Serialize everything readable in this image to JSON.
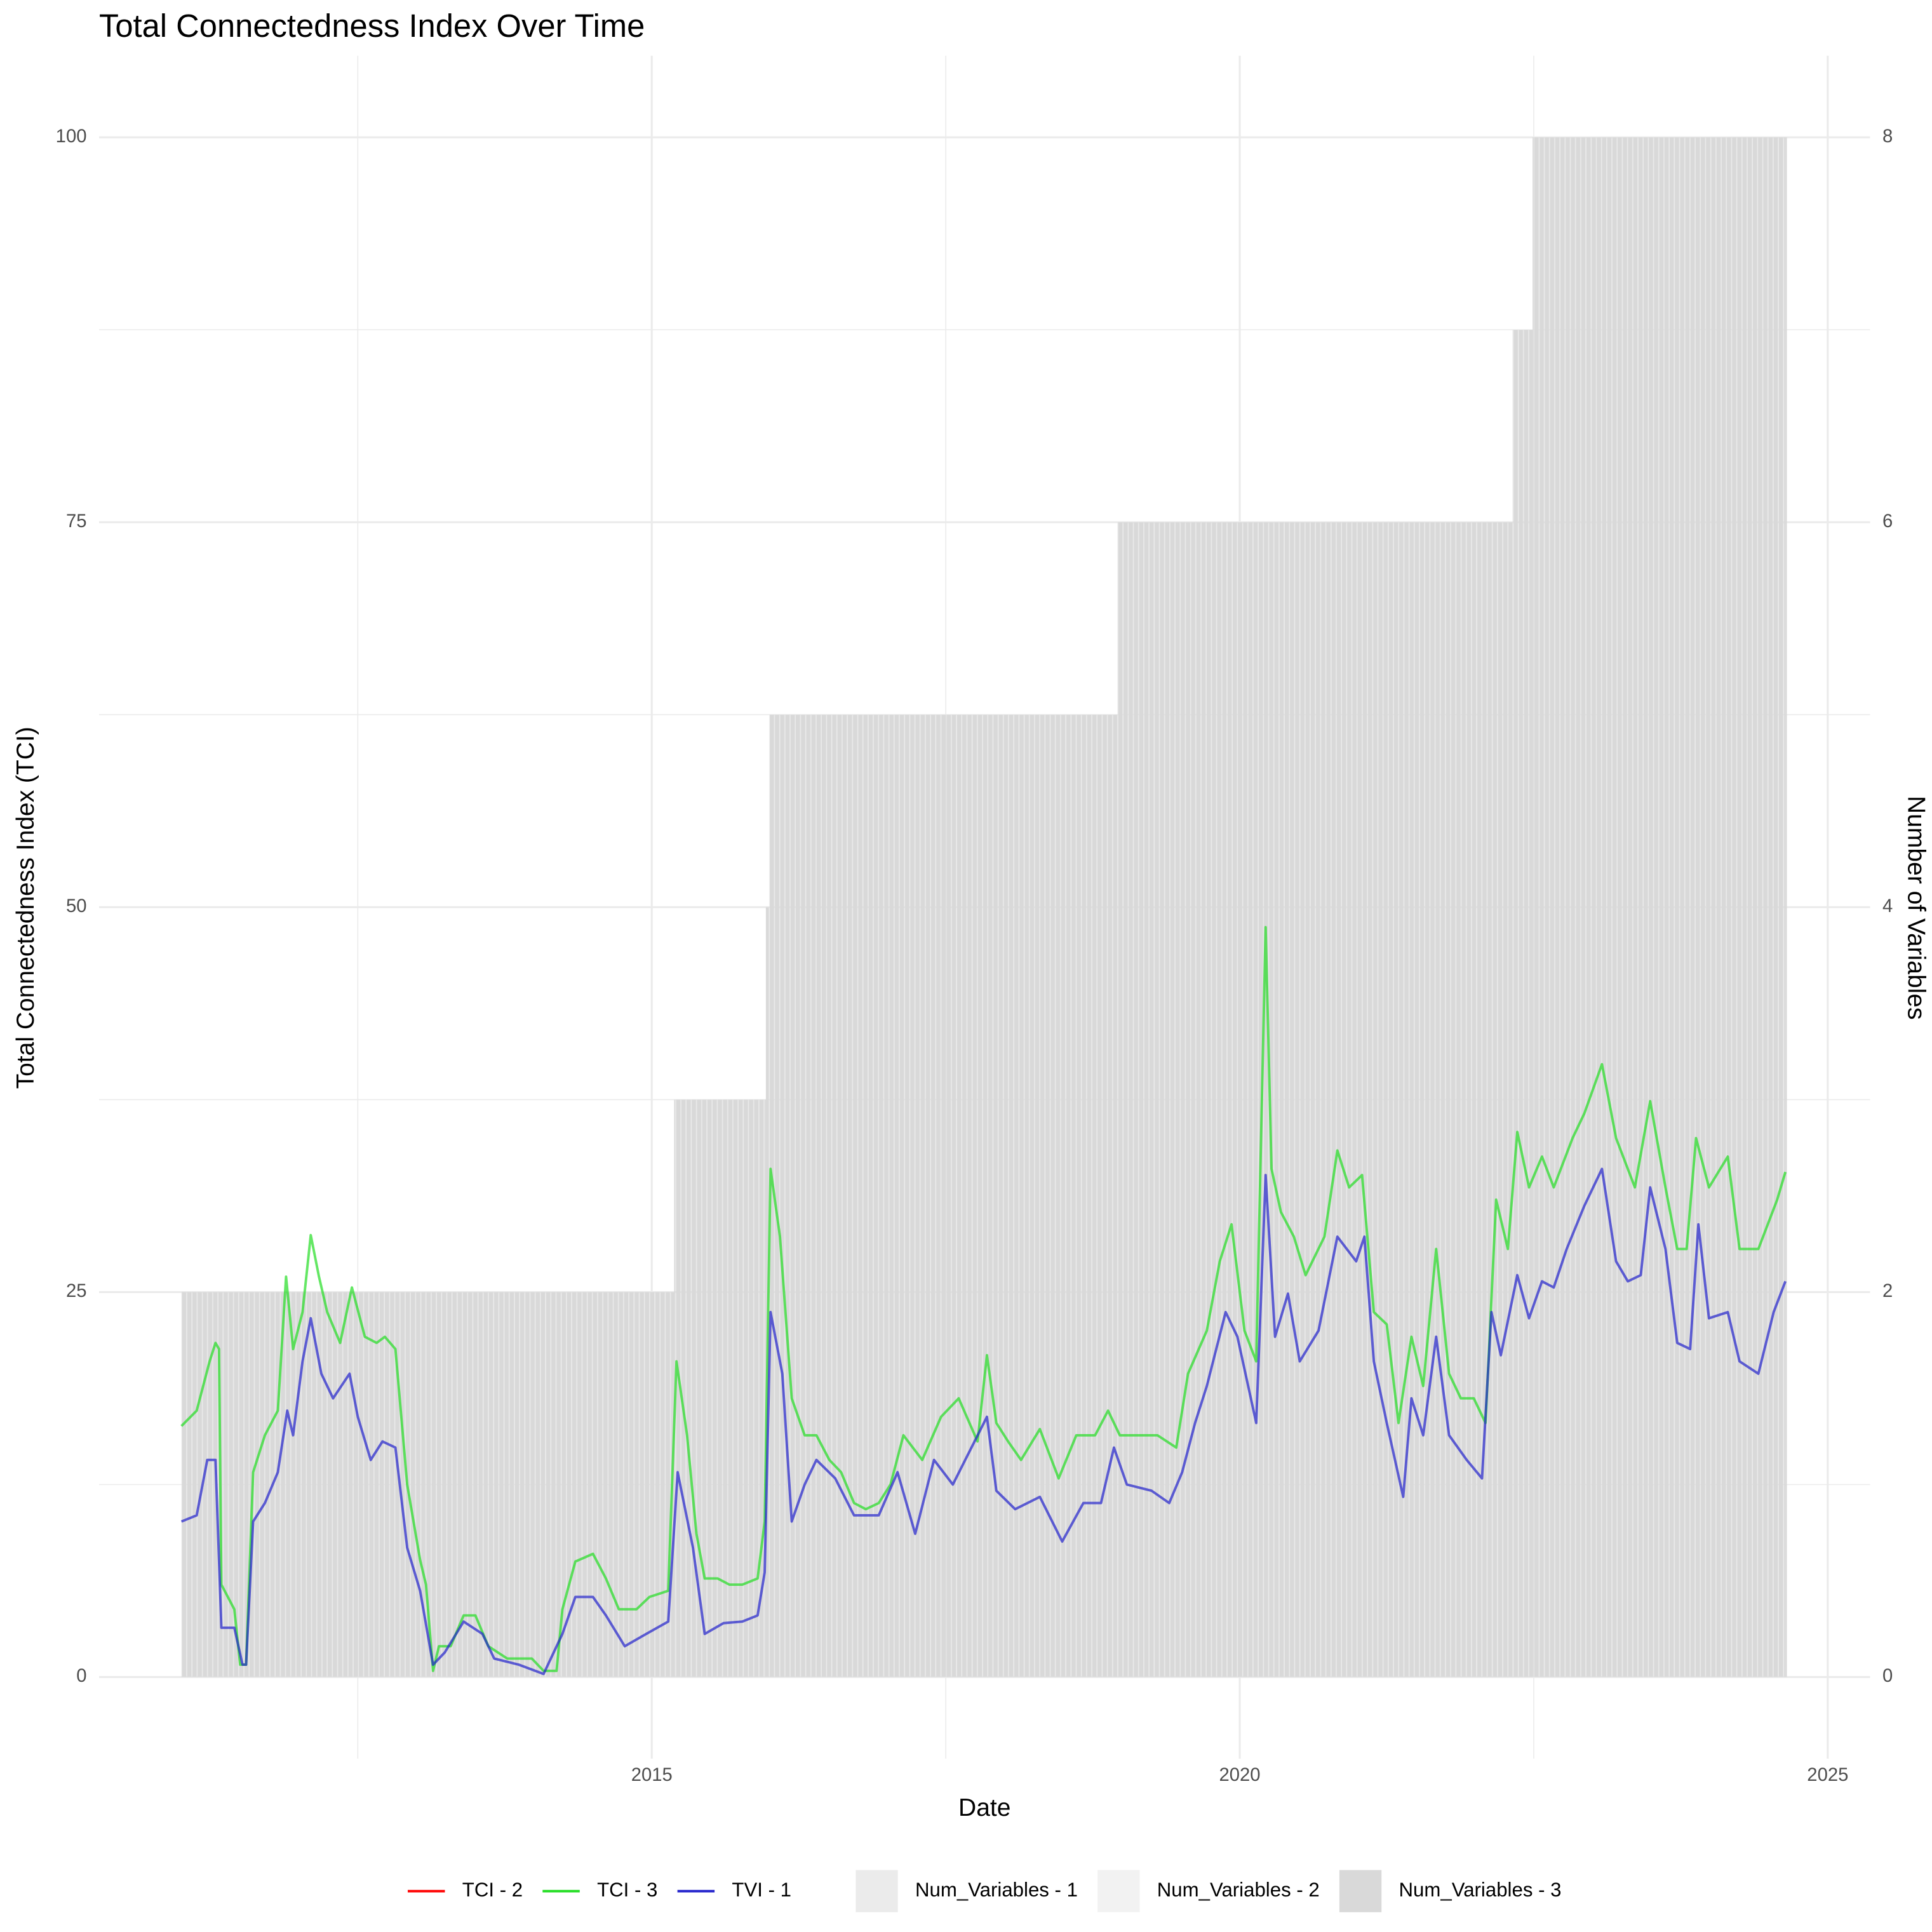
{
  "chart_data": {
    "type": "line",
    "title": "Total Connectedness Index Over Time",
    "x_label": "Date",
    "y_label": "Total Connectedness Index (TCI)",
    "y2_label": "Number of Variables",
    "xlim": [
      2010.3,
      2025.36
    ],
    "xticks": [
      2015,
      2020,
      2025
    ],
    "ylim": [
      -5.3,
      105.3
    ],
    "yticks": [
      0,
      25,
      50,
      75,
      100
    ],
    "y2lim": [
      -0.424,
      8.424
    ],
    "y2ticks": [
      0,
      2,
      4,
      6,
      8
    ],
    "grid": true,
    "minor_grid": true,
    "legend": "bottom",
    "series": [
      {
        "name": "TCI - 2",
        "type": "line",
        "color": "#ff0000",
        "x": [],
        "values": []
      },
      {
        "name": "TCI - 3",
        "type": "line",
        "color": "#22dd22",
        "x": [
          2011.0,
          2011.13,
          2011.24,
          2011.29,
          2011.32,
          2011.34,
          2011.45,
          2011.5,
          2011.55,
          2011.61,
          2011.71,
          2011.82,
          2011.89,
          2011.95,
          2012.03,
          2012.1,
          2012.17,
          2012.24,
          2012.35,
          2012.45,
          2012.56,
          2012.66,
          2012.73,
          2012.82,
          2012.92,
          2013.03,
          2013.08,
          2013.14,
          2013.19,
          2013.29,
          2013.4,
          2013.5,
          2013.61,
          2013.77,
          2013.98,
          2014.08,
          2014.19,
          2014.24,
          2014.35,
          2014.5,
          2014.61,
          2014.72,
          2014.87,
          2014.98,
          2015.14,
          2015.21,
          2015.3,
          2015.38,
          2015.45,
          2015.56,
          2015.66,
          2015.77,
          2015.9,
          2015.96,
          2016.01,
          2016.09,
          2016.19,
          2016.3,
          2016.4,
          2016.51,
          2016.61,
          2016.72,
          2016.82,
          2016.93,
          2017.03,
          2017.14,
          2017.3,
          2017.46,
          2017.61,
          2017.77,
          2017.85,
          2017.93,
          2018.03,
          2018.14,
          2018.3,
          2018.46,
          2018.61,
          2018.77,
          2018.88,
          2018.98,
          2019.14,
          2019.3,
          2019.46,
          2019.56,
          2019.72,
          2019.83,
          2019.93,
          2020.04,
          2020.14,
          2020.22,
          2020.27,
          2020.35,
          2020.46,
          2020.56,
          2020.72,
          2020.83,
          2020.93,
          2021.04,
          2021.14,
          2021.25,
          2021.35,
          2021.46,
          2021.56,
          2021.67,
          2021.78,
          2021.88,
          2021.99,
          2022.09,
          2022.18,
          2022.28,
          2022.36,
          2022.46,
          2022.57,
          2022.67,
          2022.83,
          2022.93,
          2023.08,
          2023.2,
          2023.36,
          2023.49,
          2023.62,
          2023.72,
          2023.8,
          2023.88,
          2023.99,
          2024.15,
          2024.25,
          2024.41,
          2024.57,
          2024.64
        ],
        "values": [
          16.3,
          17.3,
          20.5,
          21.7,
          21.3,
          6.0,
          4.4,
          0.8,
          0.8,
          13.3,
          15.7,
          17.3,
          26.0,
          21.3,
          23.7,
          28.7,
          26.0,
          23.7,
          21.7,
          25.3,
          22.1,
          21.7,
          22.1,
          21.3,
          12.5,
          7.6,
          6.0,
          0.4,
          2.0,
          2.0,
          4.0,
          4.0,
          2.0,
          1.2,
          1.2,
          0.4,
          0.4,
          4.4,
          7.5,
          8.0,
          6.4,
          4.4,
          4.4,
          5.2,
          5.6,
          20.5,
          15.7,
          9.3,
          6.4,
          6.4,
          6.0,
          6.0,
          6.4,
          10.1,
          33.0,
          28.6,
          18.1,
          15.7,
          15.7,
          14.1,
          13.3,
          11.3,
          10.9,
          11.3,
          12.5,
          15.7,
          14.1,
          16.9,
          18.1,
          15.3,
          20.9,
          16.5,
          15.3,
          14.1,
          16.1,
          12.9,
          15.7,
          15.7,
          17.3,
          15.7,
          15.7,
          15.7,
          14.9,
          19.7,
          22.5,
          27.0,
          29.4,
          22.5,
          20.5,
          48.7,
          33.0,
          30.2,
          28.6,
          26.1,
          28.6,
          34.2,
          31.8,
          32.6,
          23.7,
          22.9,
          16.5,
          22.1,
          18.9,
          27.8,
          19.7,
          18.1,
          18.1,
          16.5,
          31.0,
          27.8,
          35.4,
          31.8,
          33.8,
          31.8,
          35.0,
          36.6,
          39.8,
          35.0,
          31.8,
          37.4,
          31.8,
          27.8,
          27.8,
          35.0,
          31.8,
          33.8,
          27.8,
          27.8,
          31.0,
          32.8
        ]
      },
      {
        "name": "TVI - 1",
        "type": "line",
        "color": "#2222cc",
        "x": [
          2011.0,
          2011.13,
          2011.22,
          2011.29,
          2011.34,
          2011.45,
          2011.52,
          2011.55,
          2011.61,
          2011.71,
          2011.82,
          2011.9,
          2011.95,
          2012.03,
          2012.1,
          2012.19,
          2012.29,
          2012.43,
          2012.5,
          2012.61,
          2012.71,
          2012.82,
          2012.92,
          2013.03,
          2013.14,
          2013.24,
          2013.4,
          2013.56,
          2013.66,
          2013.87,
          2014.08,
          2014.24,
          2014.35,
          2014.5,
          2014.61,
          2014.77,
          2014.93,
          2015.14,
          2015.22,
          2015.35,
          2015.45,
          2015.61,
          2015.77,
          2015.9,
          2015.96,
          2016.01,
          2016.11,
          2016.19,
          2016.3,
          2016.4,
          2016.56,
          2016.72,
          2016.93,
          2017.09,
          2017.24,
          2017.4,
          2017.56,
          2017.85,
          2017.93,
          2018.09,
          2018.3,
          2018.49,
          2018.67,
          2018.82,
          2018.93,
          2019.04,
          2019.25,
          2019.4,
          2019.51,
          2019.62,
          2019.72,
          2019.88,
          2019.98,
          2020.14,
          2020.22,
          2020.3,
          2020.41,
          2020.51,
          2020.67,
          2020.83,
          2020.99,
          2021.06,
          2021.14,
          2021.25,
          2021.39,
          2021.46,
          2021.56,
          2021.67,
          2021.78,
          2021.93,
          2022.06,
          2022.14,
          2022.22,
          2022.36,
          2022.46,
          2022.57,
          2022.67,
          2022.78,
          2022.93,
          2023.08,
          2023.2,
          2023.3,
          2023.41,
          2023.49,
          2023.62,
          2023.72,
          2023.83,
          2023.9,
          2023.99,
          2024.15,
          2024.25,
          2024.41,
          2024.54,
          2024.64
        ],
        "values": [
          10.1,
          10.5,
          14.1,
          14.1,
          3.2,
          3.2,
          0.8,
          0.8,
          10.1,
          11.3,
          13.3,
          17.3,
          15.7,
          20.5,
          23.3,
          19.7,
          18.1,
          19.7,
          16.9,
          14.1,
          15.3,
          14.9,
          8.4,
          5.6,
          0.8,
          1.6,
          3.6,
          2.8,
          1.2,
          0.8,
          0.2,
          2.8,
          5.2,
          5.2,
          4.0,
          2.0,
          2.7,
          3.6,
          13.3,
          8.4,
          2.8,
          3.5,
          3.6,
          4.0,
          6.8,
          23.7,
          19.7,
          10.1,
          12.5,
          14.1,
          12.9,
          10.5,
          10.5,
          13.3,
          9.3,
          14.1,
          12.5,
          16.9,
          12.1,
          10.9,
          11.7,
          8.8,
          11.3,
          11.3,
          14.9,
          12.5,
          12.1,
          11.3,
          13.3,
          16.5,
          18.9,
          23.7,
          22.1,
          16.5,
          32.6,
          22.1,
          24.9,
          20.5,
          22.5,
          28.6,
          27.0,
          28.6,
          20.5,
          16.5,
          11.7,
          18.1,
          15.7,
          22.1,
          15.7,
          14.1,
          12.9,
          23.7,
          20.9,
          26.1,
          23.3,
          25.7,
          25.3,
          27.8,
          30.6,
          33.0,
          27.0,
          25.7,
          26.1,
          31.8,
          27.8,
          21.7,
          21.3,
          29.4,
          23.3,
          23.7,
          20.5,
          19.7,
          23.7,
          25.7
        ]
      },
      {
        "name": "Num_Variables - 1",
        "type": "bar",
        "axis": "y2",
        "color": "#ebebeb",
        "x": [],
        "values": []
      },
      {
        "name": "Num_Variables - 2",
        "type": "bar",
        "axis": "y2",
        "color": "#f2f2f2",
        "x": [],
        "values": []
      },
      {
        "name": "Num_Variables - 3",
        "type": "bar",
        "axis": "y2",
        "color": "#d9d9d9",
        "x": [
          2011.0,
          2015.19,
          2015.97,
          2016.0,
          2018.96,
          2022.32,
          2022.49,
          2024.64
        ],
        "values": [
          2,
          3,
          4,
          5,
          6,
          7,
          8,
          8
        ]
      }
    ]
  }
}
